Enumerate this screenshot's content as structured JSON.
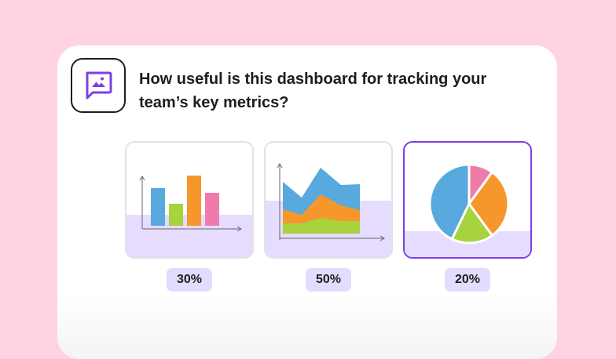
{
  "question": {
    "text": "How useful is this dashboard for tracking your team’s key metrics?",
    "icon": "image-message-icon"
  },
  "options": [
    {
      "chart_type": "bar",
      "percent_label": "30%",
      "selected": false
    },
    {
      "chart_type": "area",
      "percent_label": "50%",
      "selected": false
    },
    {
      "chart_type": "pie",
      "percent_label": "20%",
      "selected": true
    }
  ],
  "colors": {
    "background": "#ffd3e4",
    "accent": "#7b3fe4",
    "badge": "#e3dcff",
    "panel": "#e6dcff",
    "blue": "#57a9de",
    "orange": "#f6962b",
    "green": "#a6d33e",
    "pink": "#ef7bab"
  }
}
